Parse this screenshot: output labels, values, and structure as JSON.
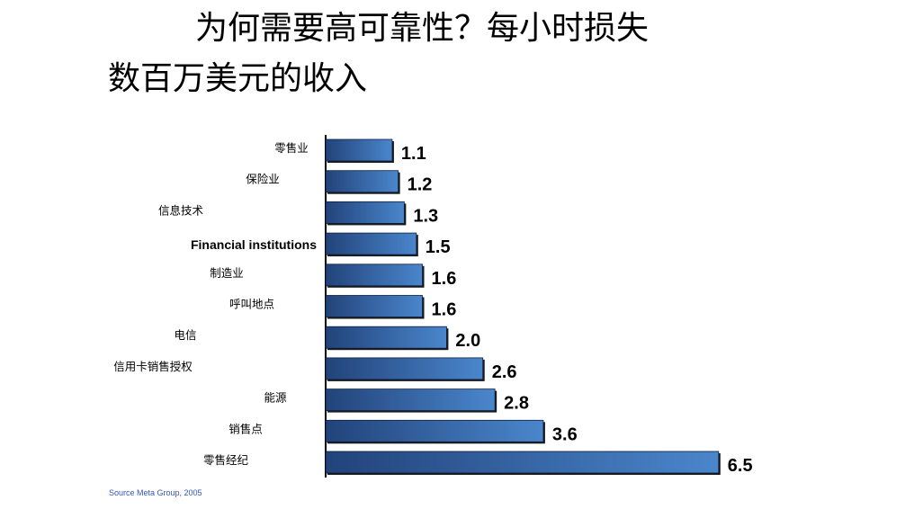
{
  "slide": {
    "title_line1": "为何需要高可靠性？每小时损失",
    "title_line2": "数百万美元的收入",
    "source": "Source Meta Group, 2005"
  },
  "colors": {
    "bar_dark": "#22437a",
    "bar_light": "#4a86cc",
    "source_text": "#3355bb"
  },
  "chart_data": {
    "type": "bar",
    "orientation": "horizontal",
    "categories": [
      "零售业",
      "保险业",
      "信息技术",
      "Financial institutions",
      "制造业",
      "呼叫地点",
      "电信",
      "信用卡销售授权",
      "能源",
      "销售点",
      "零售经纪"
    ],
    "values": [
      1.1,
      1.2,
      1.3,
      1.5,
      1.6,
      1.6,
      2.0,
      2.6,
      2.8,
      3.6,
      6.5
    ],
    "value_labels": [
      "1.1",
      "1.2",
      "1.3",
      "1.5",
      "1.6",
      "1.6",
      "2.0",
      "2.6",
      "2.8",
      "3.6",
      "6.5"
    ],
    "bold_categories": [
      "Financial institutions"
    ],
    "xlim": [
      0,
      6.5
    ],
    "title": "",
    "xlabel": "",
    "ylabel": "",
    "grid": false,
    "legend": "none"
  }
}
